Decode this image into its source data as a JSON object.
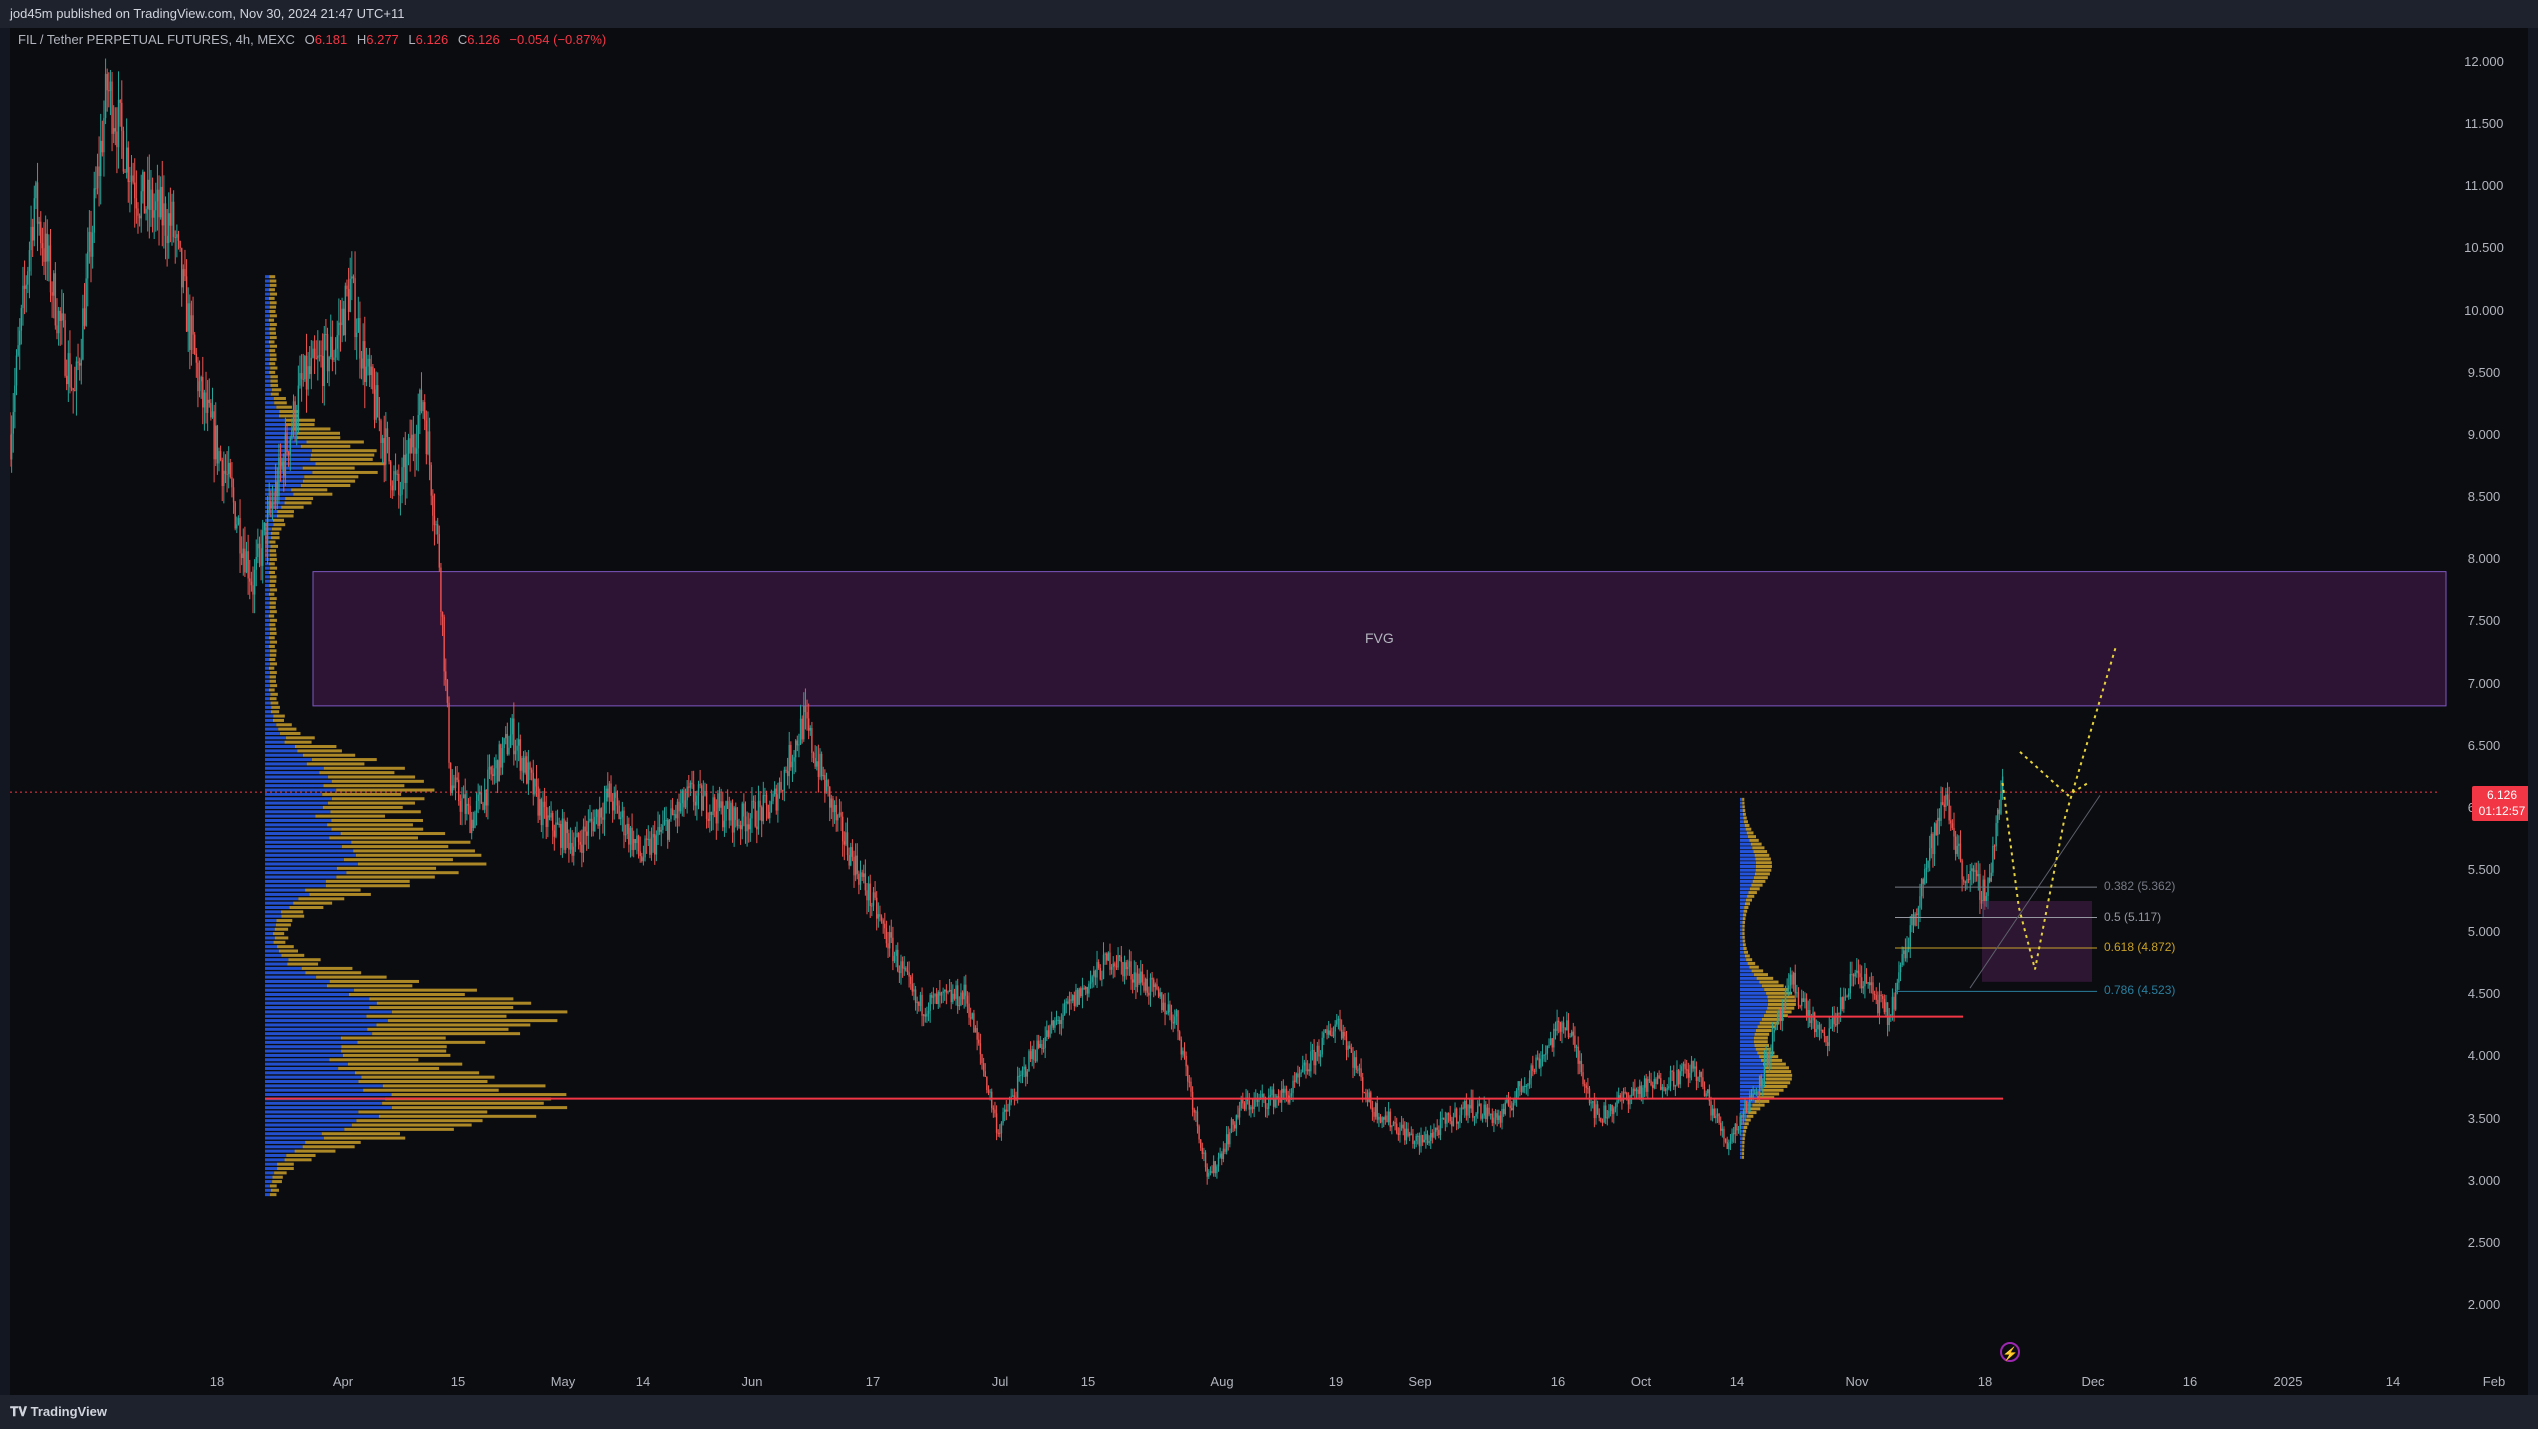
{
  "header": {
    "published_text": "jod45m published on TradingView.com, Nov 30, 2024 21:47 UTC+11"
  },
  "legend": {
    "symbol": "FIL / Tether PERPETUAL FUTURES, 4h, MEXC",
    "open_label": "O",
    "open_value": "6.181",
    "high_label": "H",
    "high_value": "6.277",
    "low_label": "L",
    "low_value": "6.126",
    "close_label": "C",
    "close_value": "6.126",
    "change": "−0.054 (−0.87%)"
  },
  "price_badge": {
    "price": "6.126",
    "countdown": "01:12:57"
  },
  "annotations": {
    "fvg_label": "FVG",
    "fib_levels": [
      {
        "label": "0.382 (5.362)",
        "price": 5.362,
        "color": "#787b86"
      },
      {
        "label": "0.5 (5.117)",
        "price": 5.117,
        "color": "#9598a1"
      },
      {
        "label": "0.618 (4.872)",
        "price": 4.872,
        "color": "#c9a227"
      },
      {
        "label": "0.786 (4.523)",
        "price": 4.523,
        "color": "#2a7f9e"
      }
    ]
  },
  "footer": {
    "brand": "TradingView"
  },
  "colors": {
    "up": "#26a69a",
    "down": "#ef5350",
    "fvg_fill": "#3a1740",
    "fvg_border": "#7e57c2",
    "vp_blue": "#2962ff",
    "vp_gold": "#d4a72c",
    "red_line": "#f23645",
    "projection": "#e6d23c"
  },
  "chart_data": {
    "type": "candlestick",
    "title": "FIL / Tether PERPETUAL FUTURES, 4h, MEXC",
    "ylim": [
      1.7,
      12.3
    ],
    "y_ticks": [
      "12.000",
      "11.500",
      "11.000",
      "10.500",
      "10.000",
      "9.500",
      "9.000",
      "8.500",
      "8.000",
      "7.500",
      "7.000",
      "6.500",
      "6.000",
      "5.500",
      "5.000",
      "4.500",
      "4.000",
      "3.500",
      "3.000",
      "2.500",
      "2.000"
    ],
    "x_ticks": [
      "18",
      "Apr",
      "15",
      "May",
      "14",
      "Jun",
      "17",
      "Jul",
      "15",
      "Aug",
      "19",
      "Sep",
      "16",
      "Oct",
      "14",
      "Nov",
      "18",
      "Dec",
      "16",
      "2025",
      "14",
      "Feb"
    ],
    "last_price": 6.126,
    "fvg_zone": {
      "low": 6.82,
      "high": 7.9,
      "label": "FVG"
    },
    "horizontal_levels": [
      3.66,
      4.32
    ],
    "fib_retracement": [
      {
        "ratio": 0.382,
        "price": 5.362
      },
      {
        "ratio": 0.5,
        "price": 5.117
      },
      {
        "ratio": 0.618,
        "price": 4.872
      },
      {
        "ratio": 0.786,
        "price": 4.523
      }
    ],
    "path_keypoints": [
      [
        0,
        9.0
      ],
      [
        15,
        10.9
      ],
      [
        40,
        9.3
      ],
      [
        60,
        11.8
      ],
      [
        80,
        10.9
      ],
      [
        100,
        10.7
      ],
      [
        118,
        9.3
      ],
      [
        135,
        8.6
      ],
      [
        150,
        7.8
      ],
      [
        165,
        8.6
      ],
      [
        180,
        9.4
      ],
      [
        200,
        9.7
      ],
      [
        210,
        10.2
      ],
      [
        220,
        9.5
      ],
      [
        240,
        8.5
      ],
      [
        255,
        9.3
      ],
      [
        265,
        8.0
      ],
      [
        272,
        6.2
      ],
      [
        285,
        5.9
      ],
      [
        310,
        6.6
      ],
      [
        330,
        5.9
      ],
      [
        350,
        5.7
      ],
      [
        370,
        6.1
      ],
      [
        390,
        5.6
      ],
      [
        420,
        6.1
      ],
      [
        450,
        5.9
      ],
      [
        470,
        6.0
      ],
      [
        490,
        6.7
      ],
      [
        510,
        5.9
      ],
      [
        540,
        5.0
      ],
      [
        560,
        4.4
      ],
      [
        590,
        4.5
      ],
      [
        610,
        3.4
      ],
      [
        630,
        4.0
      ],
      [
        660,
        4.5
      ],
      [
        680,
        4.8
      ],
      [
        700,
        4.6
      ],
      [
        720,
        4.3
      ],
      [
        740,
        3.0
      ],
      [
        760,
        3.6
      ],
      [
        790,
        3.7
      ],
      [
        820,
        4.3
      ],
      [
        840,
        3.6
      ],
      [
        870,
        3.3
      ],
      [
        900,
        3.6
      ],
      [
        920,
        3.5
      ],
      [
        940,
        3.9
      ],
      [
        960,
        4.3
      ],
      [
        980,
        3.5
      ],
      [
        1000,
        3.7
      ],
      [
        1040,
        3.9
      ],
      [
        1060,
        3.3
      ],
      [
        1080,
        3.8
      ],
      [
        1100,
        4.6
      ],
      [
        1120,
        4.1
      ],
      [
        1140,
        4.7
      ],
      [
        1160,
        4.3
      ],
      [
        1180,
        5.4
      ],
      [
        1195,
        6.1
      ],
      [
        1205,
        5.5
      ],
      [
        1220,
        5.3
      ],
      [
        1230,
        6.2
      ]
    ],
    "projection_path": [
      [
        1230,
        6.2
      ],
      [
        1240,
        5.2
      ],
      [
        1250,
        4.7
      ],
      [
        1268,
        5.9
      ],
      [
        1300,
        7.3
      ]
    ]
  }
}
